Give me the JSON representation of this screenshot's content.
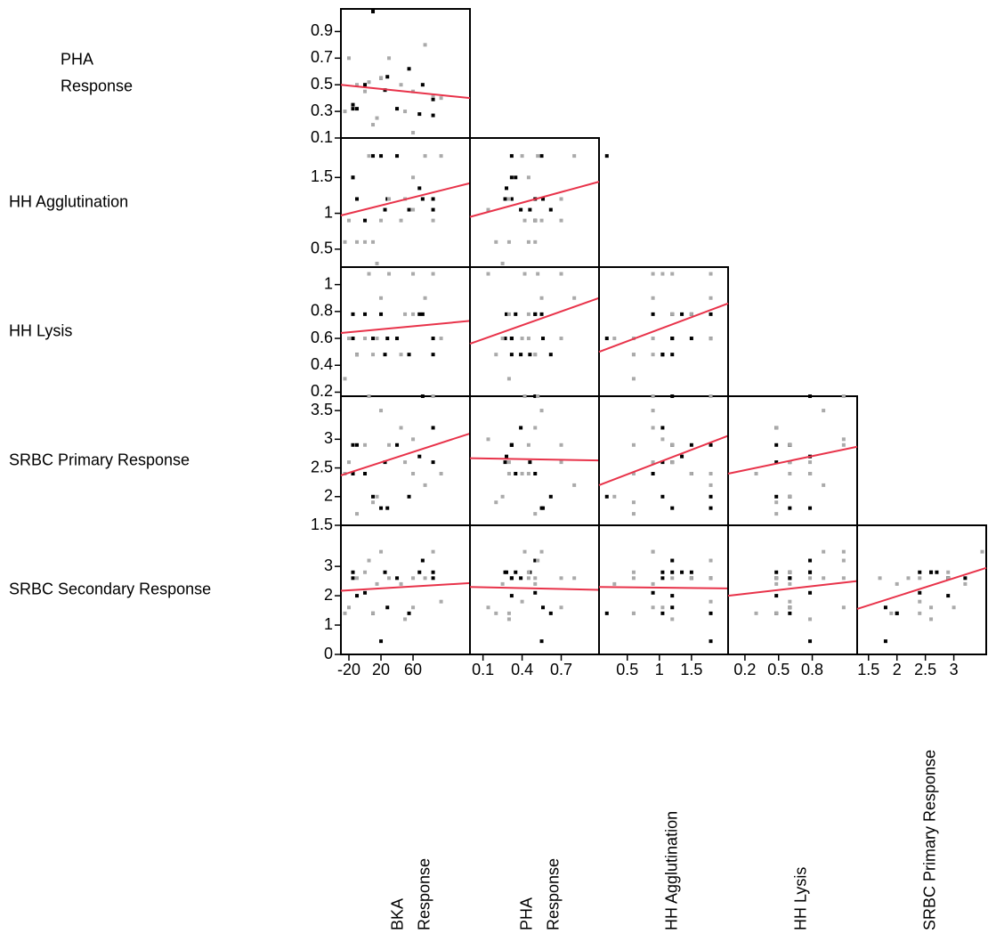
{
  "chart_data": {
    "type": "scatter_matrix",
    "point_colors": [
      "#000000",
      "#000000",
      "#000000",
      "#000000",
      "#000000",
      "#000000",
      "#000000",
      "#000000",
      "#000000",
      "#000000",
      "#000000",
      "#000000",
      "#000000",
      "#000000",
      "#aaaaaa",
      "#aaaaaa",
      "#aaaaaa",
      "#aaaaaa",
      "#aaaaaa",
      "#aaaaaa",
      "#aaaaaa",
      "#aaaaaa",
      "#aaaaaa",
      "#aaaaaa",
      "#aaaaaa",
      "#aaaaaa",
      "#aaaaaa",
      "#aaaaaa",
      "#aaaaaa",
      "#aaaaaa"
    ],
    "fit_color": "#e8334a",
    "variables": [
      {
        "values": [
          -15,
          -10,
          0,
          10,
          25,
          28,
          40,
          55,
          68,
          72,
          85,
          85,
          20,
          -15,
          -25,
          -20,
          -10,
          0,
          5,
          15,
          20,
          30,
          45,
          60,
          60,
          75,
          85,
          95,
          10,
          50
        ]
      },
      {
        "values": [
          0.32,
          0.32,
          0.5,
          1.05,
          0.46,
          0.56,
          0.32,
          0.62,
          0.28,
          0.5,
          0.27,
          0.39,
          0.55,
          0.35,
          0.3,
          0.7,
          0.5,
          0.45,
          0.52,
          0.25,
          0.55,
          0.7,
          0.5,
          0.45,
          0.14,
          0.8,
          0.42,
          0.4,
          0.2,
          0.3
        ]
      },
      {
        "values": [
          1.5,
          1.2,
          0.9,
          1.8,
          1.05,
          1.2,
          1.8,
          1.05,
          1.35,
          1.2,
          1.2,
          1.05,
          1.8,
          1.5,
          0.6,
          0.9,
          0.6,
          0.6,
          1.8,
          0.3,
          0.9,
          1.2,
          0.9,
          1.5,
          1.05,
          1.8,
          0.9,
          1.8,
          0.6,
          1.2
        ]
      },
      {
        "values": [
          0.6,
          0.48,
          0.78,
          0.6,
          0.48,
          0.6,
          0.6,
          0.48,
          0.78,
          0.78,
          0.6,
          0.48,
          0.78,
          0.78,
          0.3,
          0.6,
          0.48,
          0.6,
          1.08,
          0.6,
          0.9,
          1.08,
          0.48,
          0.78,
          1.08,
          0.9,
          1.08,
          0.6,
          0.48,
          0.78
        ]
      },
      {
        "values": [
          2.9,
          2.9,
          2.4,
          2.0,
          2.6,
          1.8,
          2.9,
          2.0,
          2.7,
          3.75,
          2.6,
          3.2,
          1.8,
          2.4,
          2.4,
          2.6,
          1.7,
          2.9,
          3.75,
          2.0,
          3.5,
          2.9,
          3.2,
          2.4,
          3.0,
          2.2,
          3.75,
          2.4,
          1.9,
          2.6
        ]
      },
      {
        "values": [
          2.6,
          2.0,
          2.1,
          1.4,
          2.8,
          1.6,
          2.6,
          1.4,
          2.8,
          3.2,
          2.8,
          2.6,
          0.45,
          2.8,
          1.4,
          1.6,
          2.6,
          2.8,
          3.2,
          2.4,
          3.5,
          2.6,
          2.4,
          2.6,
          1.6,
          2.6,
          3.5,
          1.8,
          1.4,
          1.2
        ]
      }
    ],
    "rows": [
      {
        "label": [
          "PHA",
          "Response"
        ],
        "ylim": [
          0.1,
          1.07
        ],
        "yticks": [
          0.1,
          0.3,
          0.5,
          0.7,
          0.9
        ],
        "fits": [
          [
            0.5,
            0.4
          ]
        ]
      },
      {
        "label": [
          "HH Agglutination"
        ],
        "ylim": [
          0.25,
          2.05
        ],
        "yticks": [
          0.5,
          1,
          1.5
        ],
        "fits": [
          [
            0.97,
            1.42
          ],
          [
            0.95,
            1.44
          ]
        ]
      },
      {
        "label": [
          "HH Lysis"
        ],
        "ylim": [
          0.17,
          1.13
        ],
        "yticks": [
          0.2,
          0.4,
          0.6,
          0.8,
          1
        ],
        "fits": [
          [
            0.64,
            0.73
          ],
          [
            0.56,
            0.9
          ],
          [
            0.5,
            0.86
          ]
        ]
      },
      {
        "label": [
          "SRBC Primary Response"
        ],
        "ylim": [
          1.5,
          3.75
        ],
        "yticks": [
          1.5,
          2,
          2.5,
          3,
          3.5
        ],
        "fits": [
          [
            2.37,
            3.1
          ],
          [
            2.67,
            2.63
          ],
          [
            2.2,
            3.06
          ],
          [
            2.4,
            2.87
          ]
        ]
      },
      {
        "label": [
          "SRBC Secondary Response"
        ],
        "ylim": [
          0,
          4.4
        ],
        "yticks": [
          0,
          1,
          2,
          3
        ],
        "fits": [
          [
            2.17,
            2.43
          ],
          [
            2.3,
            2.2
          ],
          [
            2.3,
            2.25
          ],
          [
            2.0,
            2.5
          ],
          [
            1.55,
            2.95
          ]
        ]
      }
    ],
    "columns": [
      {
        "label": [
          "BKA",
          "Response"
        ],
        "xlim": [
          -30,
          131
        ],
        "xticks": [
          -20,
          20,
          60
        ]
      },
      {
        "label": [
          "PHA",
          "Response"
        ],
        "xlim": [
          0,
          0.99
        ],
        "xticks": [
          0.1,
          0.4,
          0.7
        ]
      },
      {
        "label": [
          "HH Agglutination"
        ],
        "xlim": [
          0.06,
          2.07
        ],
        "xticks": [
          0.5,
          1,
          1.5
        ]
      },
      {
        "label": [
          "HH Lysis"
        ],
        "xlim": [
          0.05,
          1.2
        ],
        "xticks": [
          0.2,
          0.5,
          0.8
        ]
      },
      {
        "label": [
          "SRBC Primary Response"
        ],
        "xlim": [
          1.3,
          3.57
        ],
        "xticks": [
          1.5,
          2,
          2.5,
          3
        ]
      }
    ]
  }
}
